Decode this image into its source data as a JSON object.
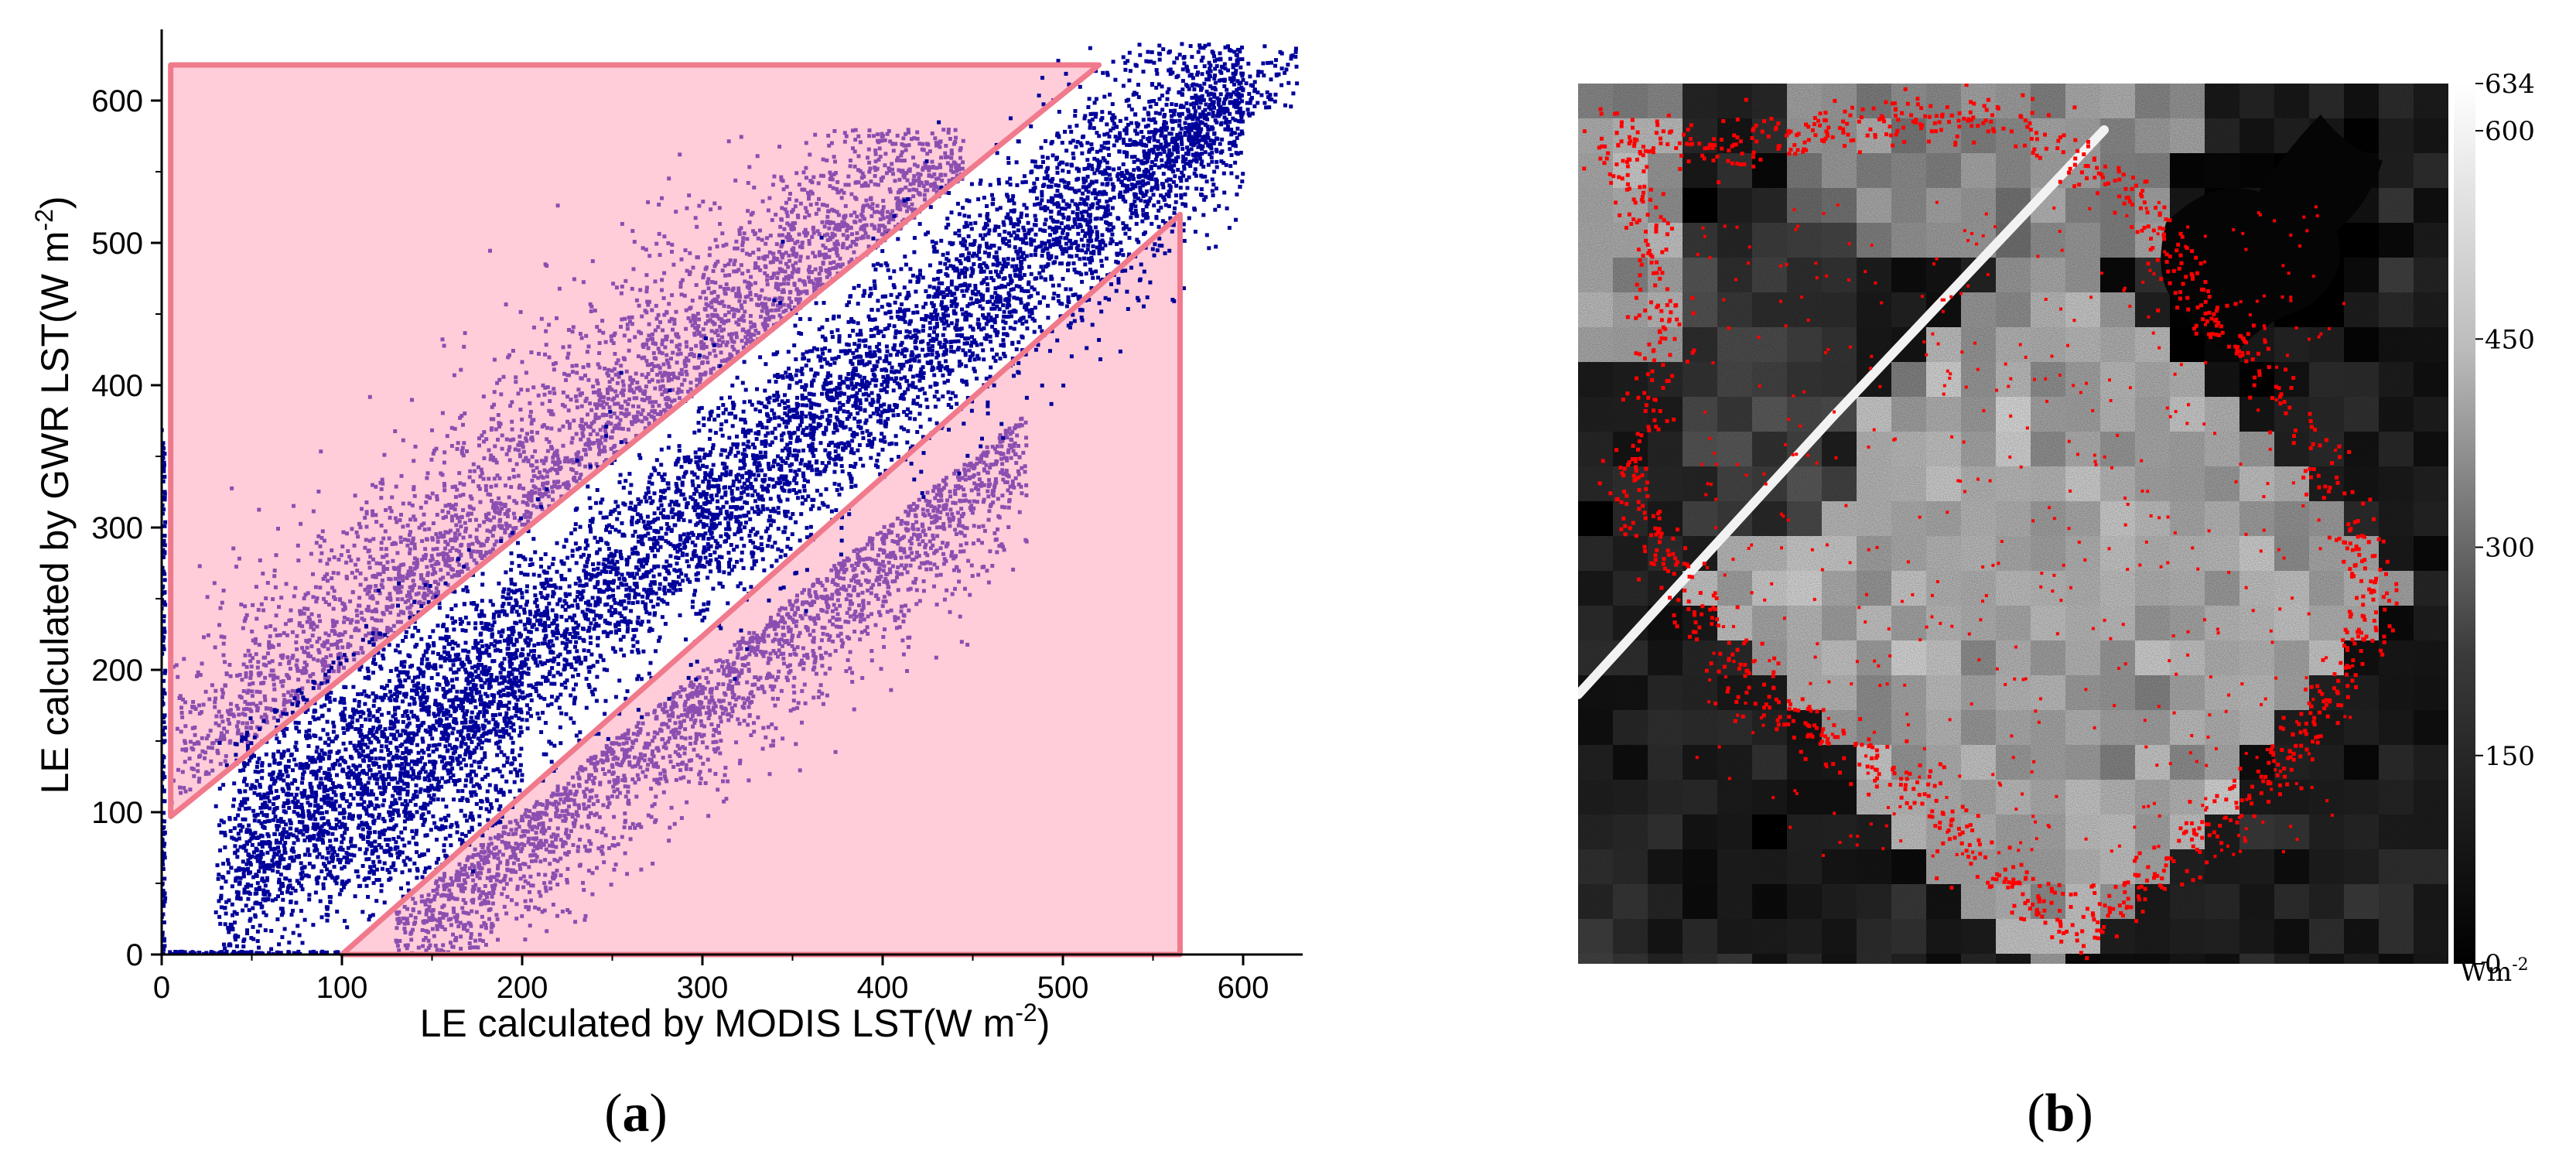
{
  "chart_data": [
    {
      "panel_label": "(a)",
      "panel_label_parts": {
        "open": "(",
        "letter": "a",
        "close": ")"
      },
      "type": "scatter",
      "xlabel": {
        "main": "LE calculated by MODIS LST(W m",
        "sup": "-2",
        "close": ")"
      },
      "ylabel": {
        "main": "LE calculated by GWR LST(W m",
        "sup": "-2",
        "close": ")"
      },
      "xlim": [
        0,
        650
      ],
      "ylim": [
        0,
        650
      ],
      "xticks": [
        0,
        100,
        200,
        300,
        400,
        500,
        600
      ],
      "yticks": [
        0,
        100,
        200,
        300,
        400,
        500,
        600
      ],
      "grid": false,
      "colors": {
        "inner_points": "#00009b",
        "outer_points": "#8a4fb0",
        "region_fill": "#ffcdd9",
        "region_edge": "#f07a8c"
      },
      "regions": [
        {
          "polygon": [
            [
              5,
              625
            ],
            [
              520,
              625
            ],
            [
              5,
              97
            ]
          ]
        },
        {
          "polygon": [
            [
              100,
              0
            ],
            [
              565,
              0
            ],
            [
              565,
              520
            ]
          ]
        }
      ],
      "series": [
        {
          "description_band": "central band around y = x",
          "center_line": [
            [
              20,
              30
            ],
            [
              590,
              625
            ]
          ],
          "approx_points": "dense"
        },
        {
          "description_band": "upper-left spread",
          "range_x": [
            5,
            450
          ],
          "range_y": [
            100,
            580
          ]
        },
        {
          "description_band": "lower-right spread",
          "range_x": [
            150,
            480
          ],
          "range_y": [
            0,
            420
          ]
        }
      ]
    },
    {
      "panel_label": "(b)",
      "panel_label_parts": {
        "open": "(",
        "letter": "b",
        "close": ")"
      },
      "type": "heatmap",
      "colorbar": {
        "min": 0,
        "max": 634,
        "ticks": [
          0,
          150,
          300,
          450,
          600,
          634
        ],
        "unit": {
          "main": "Wm",
          "sup": "-2"
        },
        "colormap": "grayscale"
      },
      "colors": {
        "highlight_points": "#ff0000"
      }
    }
  ]
}
